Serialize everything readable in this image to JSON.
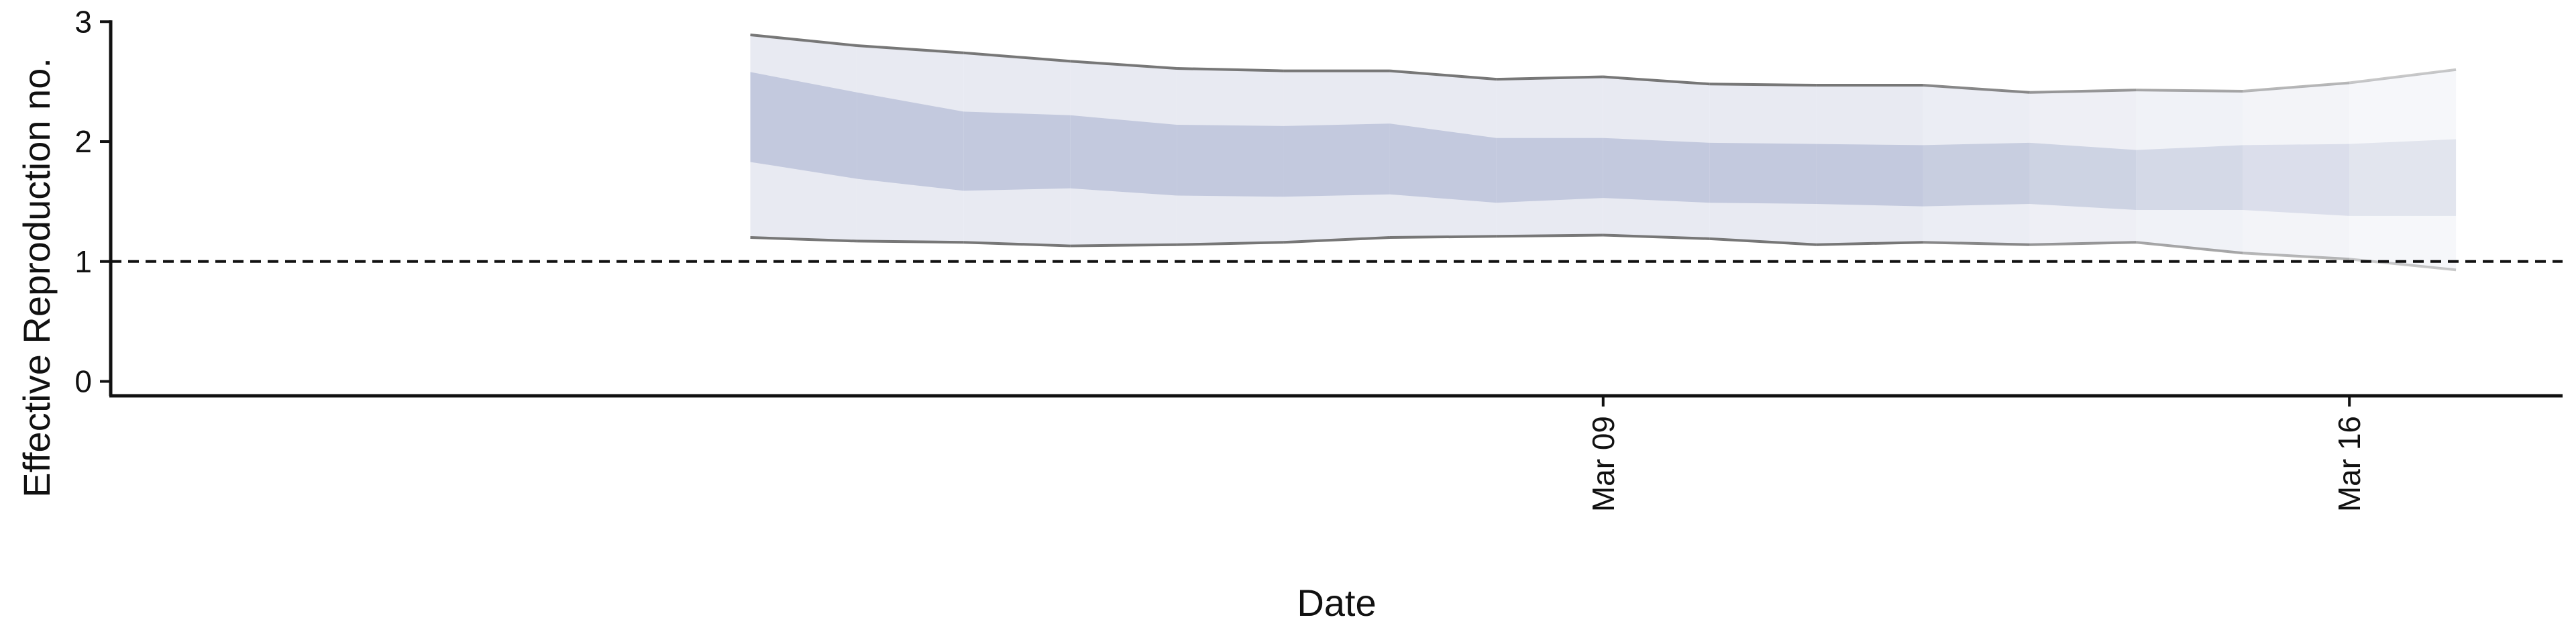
{
  "chart_data": {
    "type": "area",
    "title": "",
    "xlabel": "Date",
    "ylabel": "Effective Reproduction no.",
    "x": [
      "Mar 01",
      "Mar 02",
      "Mar 03",
      "Mar 04",
      "Mar 05",
      "Mar 06",
      "Mar 07",
      "Mar 08",
      "Mar 09",
      "Mar 10",
      "Mar 11",
      "Mar 12",
      "Mar 13",
      "Mar 14",
      "Mar 15",
      "Mar 16",
      "Mar 17"
    ],
    "x_ticks": [
      {
        "value": "Mar 09",
        "label": "Mar 09"
      },
      {
        "value": "Mar 16",
        "label": "Mar 16"
      }
    ],
    "xlim": [
      "Feb 24",
      "Mar 18"
    ],
    "y_ticks": [
      0,
      1,
      2,
      3
    ],
    "ylim": [
      -0.12,
      3.08
    ],
    "reference_line": {
      "y": 1,
      "style": "dashed"
    },
    "series": [
      {
        "band": "outer",
        "lower": [
          1.2,
          1.17,
          1.16,
          1.13,
          1.14,
          1.16,
          1.2,
          1.21,
          1.22,
          1.19,
          1.14,
          1.16,
          1.14,
          1.16,
          1.07,
          1.02,
          0.93
        ],
        "upper": [
          2.89,
          2.8,
          2.74,
          2.67,
          2.61,
          2.59,
          2.59,
          2.52,
          2.54,
          2.48,
          2.47,
          2.47,
          2.41,
          2.43,
          2.42,
          2.49,
          2.6
        ]
      },
      {
        "band": "inner",
        "lower": [
          1.83,
          1.69,
          1.59,
          1.61,
          1.55,
          1.54,
          1.56,
          1.49,
          1.53,
          1.49,
          1.48,
          1.46,
          1.48,
          1.43,
          1.43,
          1.38,
          1.38
        ],
        "upper": [
          2.58,
          2.41,
          2.25,
          2.22,
          2.14,
          2.13,
          2.15,
          2.03,
          2.03,
          1.99,
          1.98,
          1.97,
          1.99,
          1.93,
          1.97,
          1.98,
          2.02
        ]
      }
    ],
    "colors": {
      "inner_band": "#b9c0d8",
      "outer_band": "#e8eaf2",
      "edge_line": "#777777",
      "axis": "#111111",
      "reference": "#111111"
    },
    "grid": false,
    "legend": "none"
  }
}
